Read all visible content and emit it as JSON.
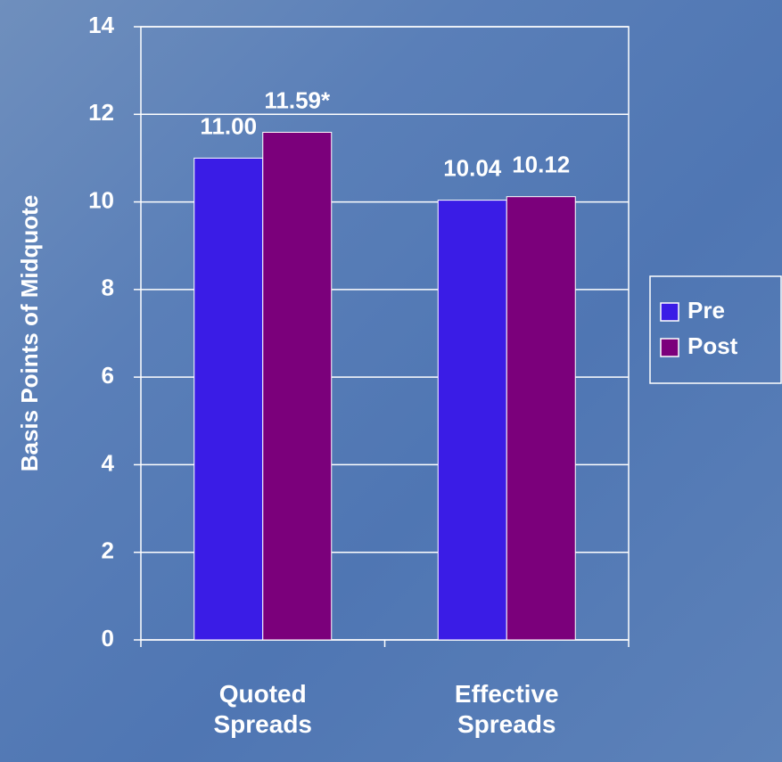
{
  "chart_data": {
    "type": "bar",
    "y_label": "Basis Points of Midquote",
    "categories": [
      "Quoted Spreads",
      "Effective Spreads"
    ],
    "series": [
      {
        "name": "Pre",
        "color": "#3a1ce6",
        "values": [
          11.0,
          10.04
        ],
        "value_labels": [
          "11.00",
          "10.04"
        ]
      },
      {
        "name": "Post",
        "color": "#7b007b",
        "values": [
          11.59,
          10.12
        ],
        "value_labels": [
          "11.59*",
          "10.12"
        ]
      }
    ],
    "ylim": [
      0,
      14
    ],
    "yticks": [
      0,
      2,
      4,
      6,
      8,
      10,
      12,
      14
    ],
    "grid": true,
    "legend": "right"
  }
}
